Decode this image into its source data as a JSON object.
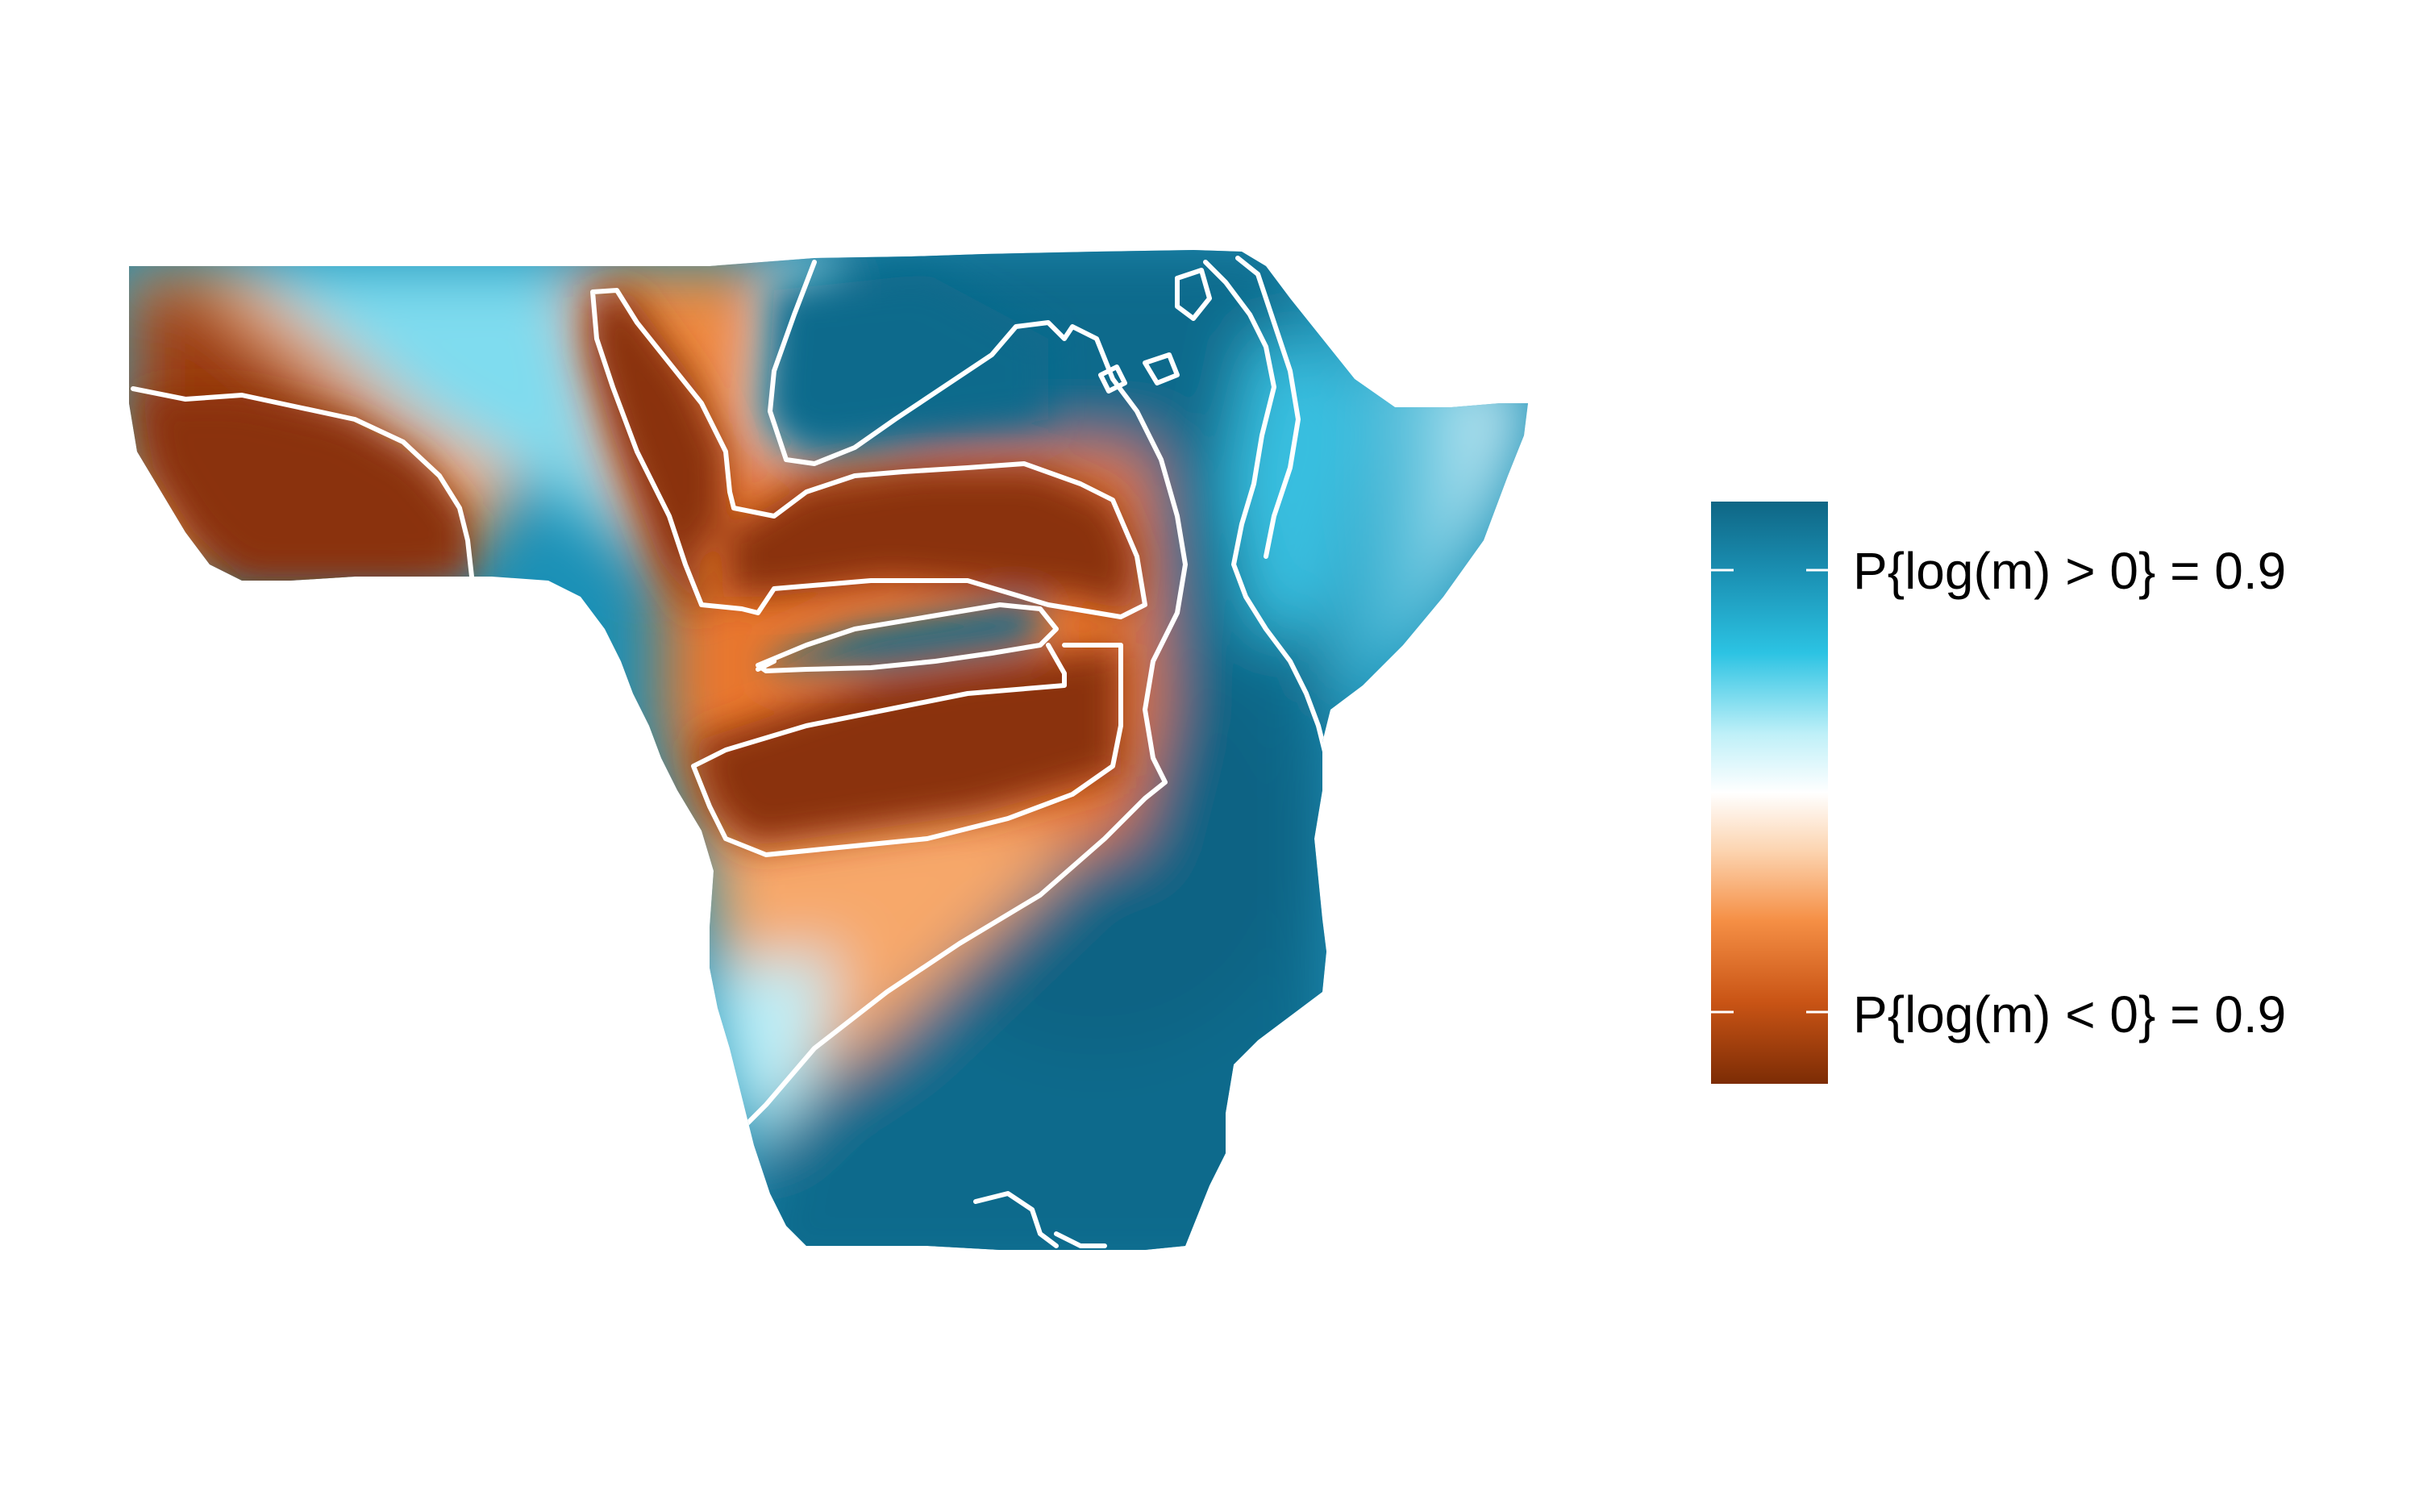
{
  "figure": {
    "type": "posterior probability surface map",
    "region": "Africa",
    "colors": {
      "strong_positive": "#0e6b8c",
      "positive": "#1fa6c9",
      "light_positive": "#8fe2f2",
      "neutral": "#ffffff",
      "light_negative": "#fbc9a0",
      "negative": "#ec7a32",
      "strong_negative": "#8a3108",
      "contour": "#ffffff"
    }
  },
  "legend": {
    "upper_label": "P{log(m) > 0} = 0.9",
    "lower_label": "P{log(m) < 0} = 0.9",
    "gradient_stops": [
      "#0f6685",
      "#1a8fb2",
      "#2cc3e3",
      "#bff0f8",
      "#ffffff",
      "#fcd4b0",
      "#f58f45",
      "#c95415",
      "#7c2c05"
    ]
  }
}
